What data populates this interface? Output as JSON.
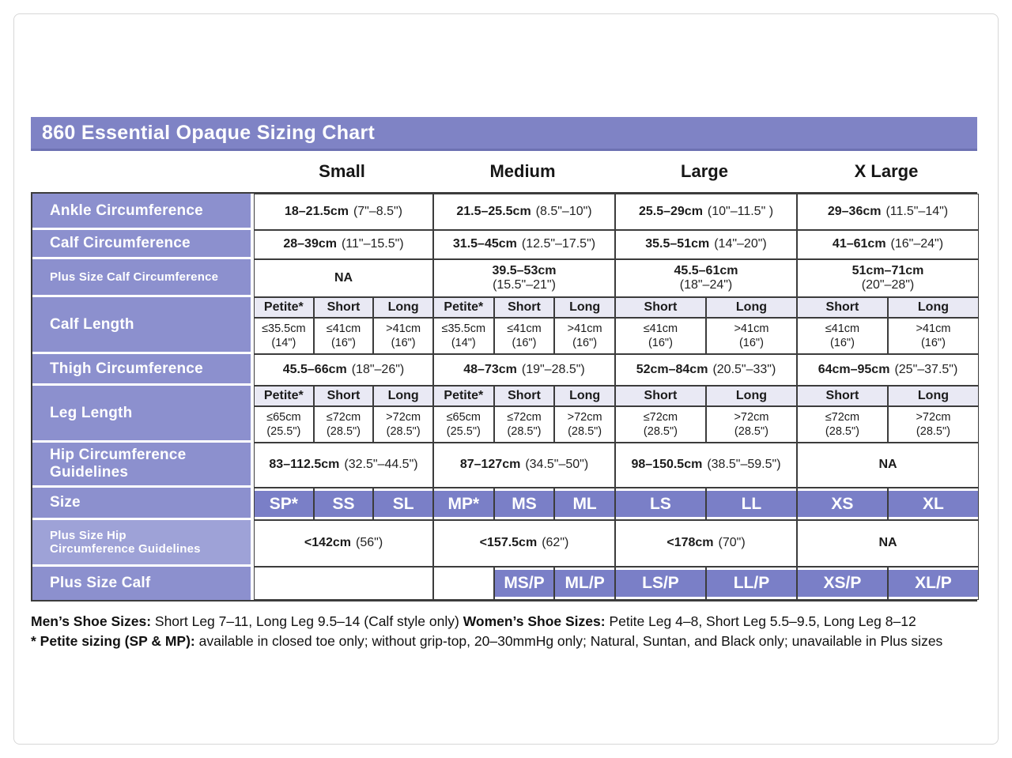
{
  "title": "860 Essential Opaque Sizing Chart",
  "colors": {
    "banner_purple": "#7f83c5",
    "label_purple": "#8c90ce",
    "label_purple_light": "#9ea2d7",
    "subheader_lavender": "#e9e9f4",
    "size_cell_purple": "#7a7fc7",
    "grid_line": "#3c3c3c"
  },
  "columns": {
    "small": "Small",
    "medium": "Medium",
    "large": "Large",
    "xlarge": "X Large"
  },
  "rows": {
    "ankle": {
      "label": "Ankle Circumference",
      "cells": [
        {
          "cm": "18–21.5cm",
          "in": "(7\"–8.5\")"
        },
        {
          "cm": "21.5–25.5cm",
          "in": "(8.5\"–10\")"
        },
        {
          "cm": "25.5–29cm",
          "in": "(10\"–11.5\" )"
        },
        {
          "cm": "29–36cm",
          "in": "(11.5\"–14\")"
        }
      ]
    },
    "calf": {
      "label": "Calf Circumference",
      "cells": [
        {
          "cm": "28–39cm",
          "in": "(11\"–15.5\")"
        },
        {
          "cm": "31.5–45cm",
          "in": "(12.5\"–17.5\")"
        },
        {
          "cm": "35.5–51cm",
          "in": "(14\"–20\")"
        },
        {
          "cm": "41–61cm",
          "in": "(16\"–24\")"
        }
      ]
    },
    "plus_calf_circ": {
      "label": "Plus Size Calf Circumference",
      "cells": [
        {
          "cm": "NA",
          "in": ""
        },
        {
          "cm": "39.5–53cm",
          "in": "(15.5\"–21\")"
        },
        {
          "cm": "45.5–61cm",
          "in": "(18\"–24\")"
        },
        {
          "cm": "51cm–71cm",
          "in": "(20\"–28\")"
        }
      ]
    },
    "calf_length": {
      "label": "Calf Length",
      "headers": [
        "Petite*",
        "Short",
        "Long",
        "Petite*",
        "Short",
        "Long",
        "Short",
        "Long",
        "Short",
        "Long"
      ],
      "values": [
        {
          "v": "≤35.5cm",
          "in": "(14\")"
        },
        {
          "v": "≤41cm",
          "in": "(16\")"
        },
        {
          "v": ">41cm",
          "in": "(16\")"
        },
        {
          "v": "≤35.5cm",
          "in": "(14\")"
        },
        {
          "v": "≤41cm",
          "in": "(16\")"
        },
        {
          "v": ">41cm",
          "in": "(16\")"
        },
        {
          "v": "≤41cm",
          "in": "(16\")"
        },
        {
          "v": ">41cm",
          "in": "(16\")"
        },
        {
          "v": "≤41cm",
          "in": "(16\")"
        },
        {
          "v": ">41cm",
          "in": "(16\")"
        }
      ]
    },
    "thigh": {
      "label": "Thigh Circumference",
      "cells": [
        {
          "cm": "45.5–66cm",
          "in": "(18\"–26\")"
        },
        {
          "cm": "48–73cm",
          "in": "(19\"–28.5\")"
        },
        {
          "cm": "52cm–84cm",
          "in": "(20.5\"–33\")"
        },
        {
          "cm": "64cm–95cm",
          "in": "(25\"–37.5\")"
        }
      ]
    },
    "leg_length": {
      "label": "Leg Length",
      "headers": [
        "Petite*",
        "Short",
        "Long",
        "Petite*",
        "Short",
        "Long",
        "Short",
        "Long",
        "Short",
        "Long"
      ],
      "values": [
        {
          "v": "≤65cm",
          "in": "(25.5\")"
        },
        {
          "v": "≤72cm",
          "in": "(28.5\")"
        },
        {
          "v": ">72cm",
          "in": "(28.5\")"
        },
        {
          "v": "≤65cm",
          "in": "(25.5\")"
        },
        {
          "v": "≤72cm",
          "in": "(28.5\")"
        },
        {
          "v": ">72cm",
          "in": "(28.5\")"
        },
        {
          "v": "≤72cm",
          "in": "(28.5\")"
        },
        {
          "v": ">72cm",
          "in": "(28.5\")"
        },
        {
          "v": "≤72cm",
          "in": "(28.5\")"
        },
        {
          "v": ">72cm",
          "in": "(28.5\")"
        }
      ]
    },
    "hip": {
      "label_line1": "Hip Circumference",
      "label_line2": "Guidelines",
      "cells": [
        {
          "cm": "83–112.5cm",
          "in": "(32.5\"–44.5\")"
        },
        {
          "cm": "87–127cm",
          "in": "(34.5\"–50\")"
        },
        {
          "cm": "98–150.5cm",
          "in": "(38.5\"–59.5\")"
        },
        {
          "cm": "NA",
          "in": ""
        }
      ]
    },
    "size": {
      "label": "Size",
      "values": [
        "SP*",
        "SS",
        "SL",
        "MP*",
        "MS",
        "ML",
        "LS",
        "LL",
        "XS",
        "XL"
      ]
    },
    "plus_hip": {
      "label_line1": "Plus Size Hip",
      "label_line2": "Circumference Guidelines",
      "cells": [
        {
          "cm": "<142cm",
          "in": "(56\")"
        },
        {
          "cm": "<157.5cm",
          "in": "(62\")"
        },
        {
          "cm": "<178cm",
          "in": "(70\")"
        },
        {
          "cm": "NA",
          "in": ""
        }
      ]
    },
    "plus_calf": {
      "label": "Plus Size Calf",
      "values": [
        "MS/P",
        "ML/P",
        "LS/P",
        "LL/P",
        "XS/P",
        "XL/P"
      ]
    }
  },
  "footer": {
    "mens_label": "Men’s Shoe Sizes:",
    "mens_text": " Short Leg 7–11, Long Leg 9.5–14 (Calf style only)  ",
    "womens_label": "Women’s Shoe Sizes:",
    "womens_text": " Petite Leg 4–8,  Short Leg 5.5–9.5, Long Leg 8–12",
    "petite_label": "* Petite sizing (SP & MP):",
    "petite_text": " available in closed toe only; without grip-top, 20–30mmHg only; Natural, Suntan, and Black only; unavailable in Plus sizes"
  }
}
